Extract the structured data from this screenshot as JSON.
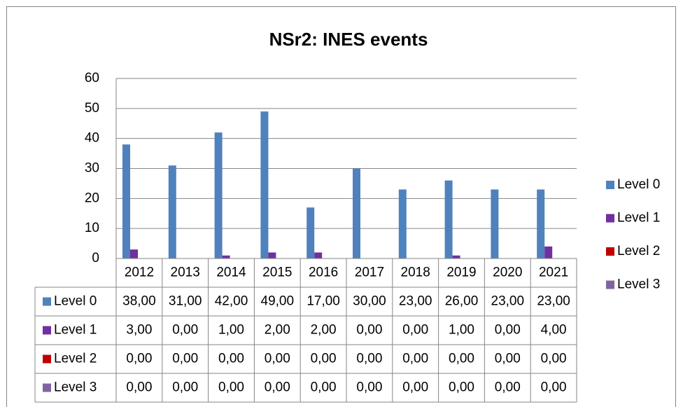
{
  "chart_data": {
    "type": "bar",
    "title": "NSr2: INES events",
    "categories": [
      "2012",
      "2013",
      "2014",
      "2015",
      "2016",
      "2017",
      "2018",
      "2019",
      "2020",
      "2021"
    ],
    "series": [
      {
        "name": "Level 0",
        "color": "#4f81bd",
        "values": [
          38,
          31,
          42,
          49,
          17,
          30,
          23,
          26,
          23,
          23
        ],
        "value_labels": [
          "38,00",
          "31,00",
          "42,00",
          "49,00",
          "17,00",
          "30,00",
          "23,00",
          "26,00",
          "23,00",
          "23,00"
        ]
      },
      {
        "name": "Level 1",
        "color": "#7030a0",
        "values": [
          3,
          0,
          1,
          2,
          2,
          0,
          0,
          1,
          0,
          4
        ],
        "value_labels": [
          "3,00",
          "0,00",
          "1,00",
          "2,00",
          "2,00",
          "0,00",
          "0,00",
          "1,00",
          "0,00",
          "4,00"
        ]
      },
      {
        "name": "Level 2",
        "color": "#c00000",
        "values": [
          0,
          0,
          0,
          0,
          0,
          0,
          0,
          0,
          0,
          0
        ],
        "value_labels": [
          "0,00",
          "0,00",
          "0,00",
          "0,00",
          "0,00",
          "0,00",
          "0,00",
          "0,00",
          "0,00",
          "0,00"
        ]
      },
      {
        "name": "Level 3",
        "color": "#8064a2",
        "values": [
          0,
          0,
          0,
          0,
          0,
          0,
          0,
          0,
          0,
          0
        ],
        "value_labels": [
          "0,00",
          "0,00",
          "0,00",
          "0,00",
          "0,00",
          "0,00",
          "0,00",
          "0,00",
          "0,00",
          "0,00"
        ]
      }
    ],
    "ylim": [
      0,
      60
    ],
    "yticks": [
      0,
      10,
      20,
      30,
      40,
      50,
      60
    ],
    "grid": true,
    "legend": "right",
    "data_table": true
  }
}
